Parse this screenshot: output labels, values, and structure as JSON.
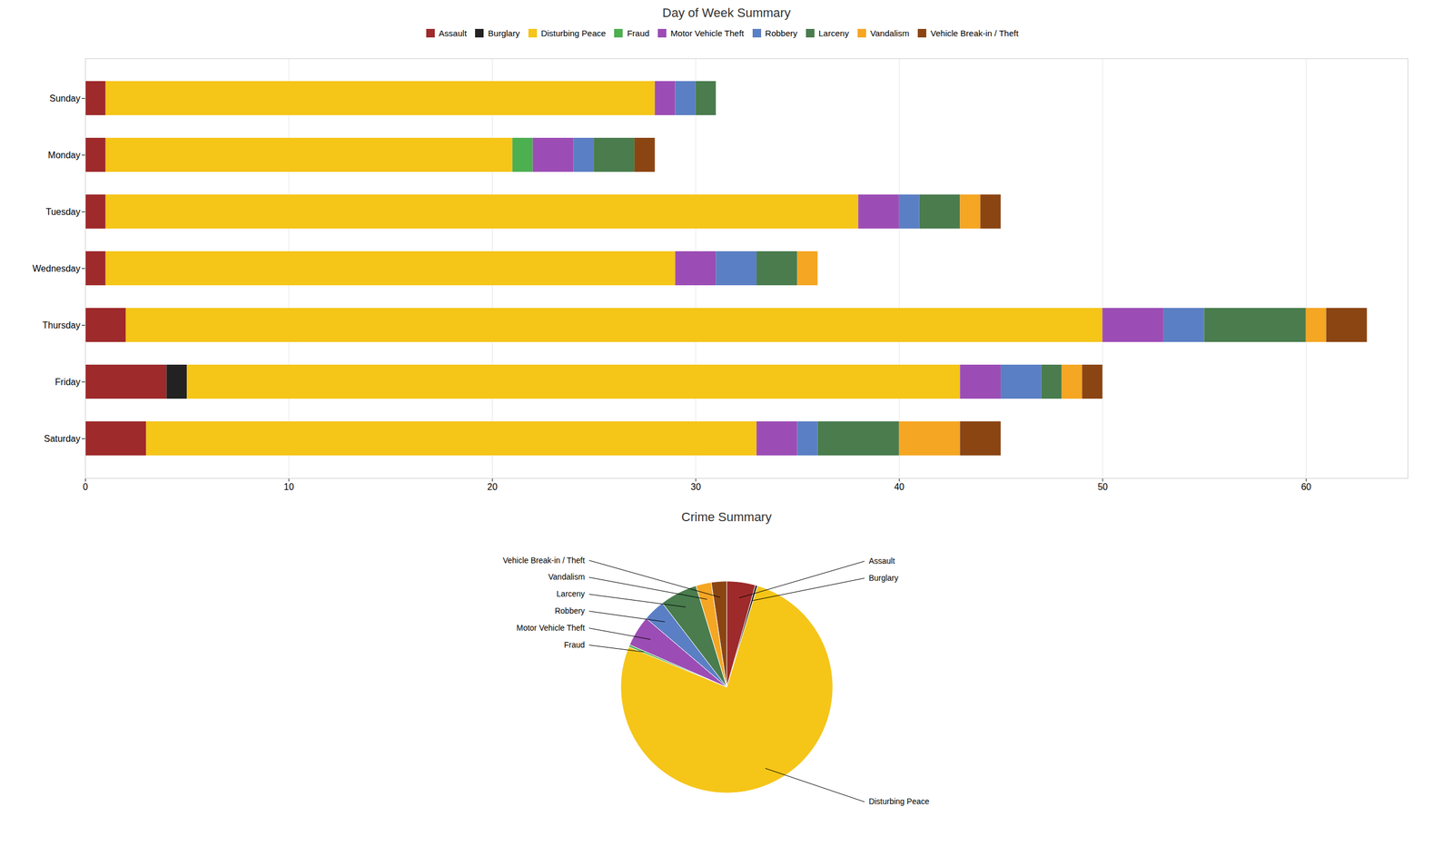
{
  "chart_data": [
    {
      "type": "bar",
      "title": "Day of Week Summary",
      "orientation": "horizontal",
      "stacked": true,
      "categories": [
        "Saturday",
        "Friday",
        "Thursday",
        "Wednesday",
        "Tuesday",
        "Monday",
        "Sunday"
      ],
      "series": [
        {
          "name": "Assault",
          "color": "#9e2a2b",
          "values": [
            3,
            4,
            2,
            1,
            1,
            1,
            1
          ]
        },
        {
          "name": "Burglary",
          "color": "#222222",
          "values": [
            0,
            1,
            0,
            0,
            0,
            0,
            0
          ]
        },
        {
          "name": "Disturbing Peace",
          "color": "#f5c518",
          "values": [
            30,
            38,
            48,
            28,
            37,
            20,
            27
          ]
        },
        {
          "name": "Fraud",
          "color": "#4caf50",
          "values": [
            0,
            0,
            0,
            0,
            0,
            1,
            0
          ]
        },
        {
          "name": "Motor Vehicle Theft",
          "color": "#9c4db5",
          "values": [
            2,
            2,
            3,
            2,
            2,
            2,
            1
          ]
        },
        {
          "name": "Robbery",
          "color": "#5b7fc4",
          "values": [
            1,
            2,
            2,
            2,
            1,
            1,
            1
          ]
        },
        {
          "name": "Larceny",
          "color": "#4a7c4e",
          "values": [
            4,
            1,
            5,
            2,
            2,
            2,
            1
          ]
        },
        {
          "name": "Vandalism",
          "color": "#f5a623",
          "values": [
            3,
            1,
            1,
            1,
            1,
            0,
            0
          ]
        },
        {
          "name": "Vehicle Break-in / Theft",
          "color": "#8b4513",
          "values": [
            2,
            1,
            2,
            0,
            1,
            1,
            0
          ]
        }
      ],
      "xlim": [
        0,
        65
      ],
      "xticks": [
        0,
        10,
        20,
        30,
        40,
        50,
        60
      ],
      "grid": true,
      "legend": "top"
    },
    {
      "type": "pie",
      "title": "Crime Summary",
      "categories": [
        "Assault",
        "Burglary",
        "Disturbing Peace",
        "Fraud",
        "Motor Vehicle Theft",
        "Robbery",
        "Larceny",
        "Vandalism",
        "Vehicle Break-in / Theft"
      ],
      "values": [
        13,
        1,
        228,
        1,
        14,
        10,
        17,
        7,
        7
      ],
      "colors": [
        "#9e2a2b",
        "#222222",
        "#f5c518",
        "#4caf50",
        "#9c4db5",
        "#5b7fc4",
        "#4a7c4e",
        "#f5a623",
        "#8b4513"
      ]
    }
  ]
}
